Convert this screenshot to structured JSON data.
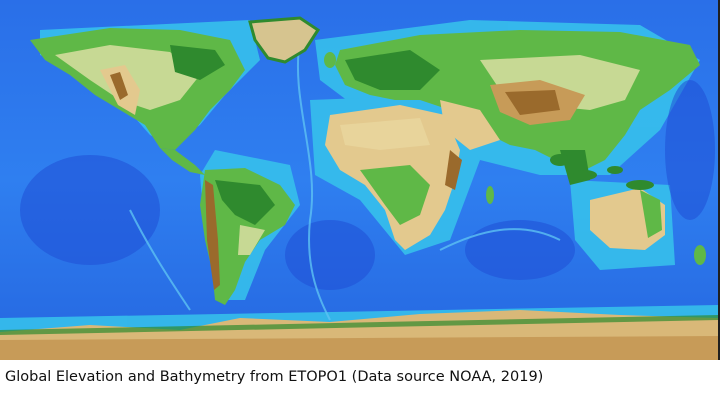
{
  "caption": "Global Elevation and Bathymetry from ETOPO1 (Data source NOAA, 2019)",
  "colors": {
    "deep_ocean": "#1f4fd6",
    "ocean": "#2f7ff0",
    "shallow_sea": "#37c4ec",
    "lowland_green": "#2f8a2e",
    "green": "#5fb847",
    "plains": "#c7d994",
    "tan": "#e3c98e",
    "highland_brown": "#c79b58",
    "mountain_dark": "#9a6a2c",
    "background": "#ffffff"
  }
}
